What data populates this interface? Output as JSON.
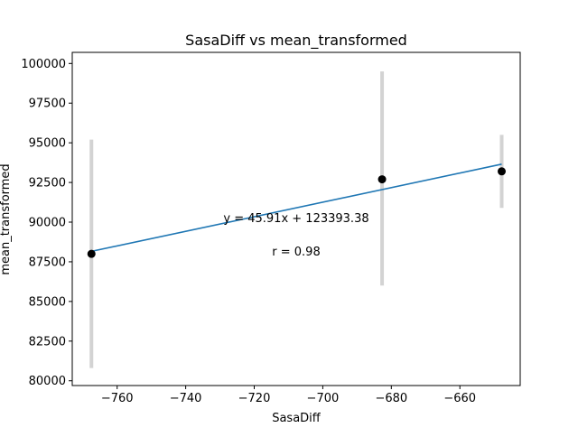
{
  "chart_data": {
    "type": "scatter",
    "title": "SasaDiff vs mean_transformed",
    "xlabel": "SasaDiff",
    "ylabel": "mean_transformed",
    "xlim": [
      -773.1,
      -642.4
    ],
    "ylim": [
      79700,
      100700
    ],
    "xticks": [
      -760,
      -740,
      -720,
      -700,
      -680,
      -660
    ],
    "xtick_labels": [
      "−760",
      "−740",
      "−720",
      "−700",
      "−680",
      "−660"
    ],
    "yticks": [
      80000,
      82500,
      85000,
      87500,
      90000,
      92500,
      95000,
      97500,
      100000
    ],
    "ytick_labels": [
      "80000",
      "82500",
      "85000",
      "87500",
      "90000",
      "92500",
      "95000",
      "97500",
      "100000"
    ],
    "points": [
      {
        "x": -767.5,
        "y": 88000,
        "err_low": 80800,
        "err_high": 95200
      },
      {
        "x": -682.7,
        "y": 92700,
        "err_low": 86000,
        "err_high": 99500
      },
      {
        "x": -647.8,
        "y": 93200,
        "err_low": 90900,
        "err_high": 95500
      }
    ],
    "fit": {
      "slope": 45.91,
      "intercept": 123393.38,
      "x_range": [
        -767.5,
        -647.8
      ]
    },
    "annotations": {
      "equation": "y = 45.91x + 123393.38",
      "r": "r = 0.98"
    },
    "colors": {
      "points": "#000000",
      "errorbars": "#d3d3d3",
      "fit_line": "#1f77b4"
    },
    "grid": false
  }
}
